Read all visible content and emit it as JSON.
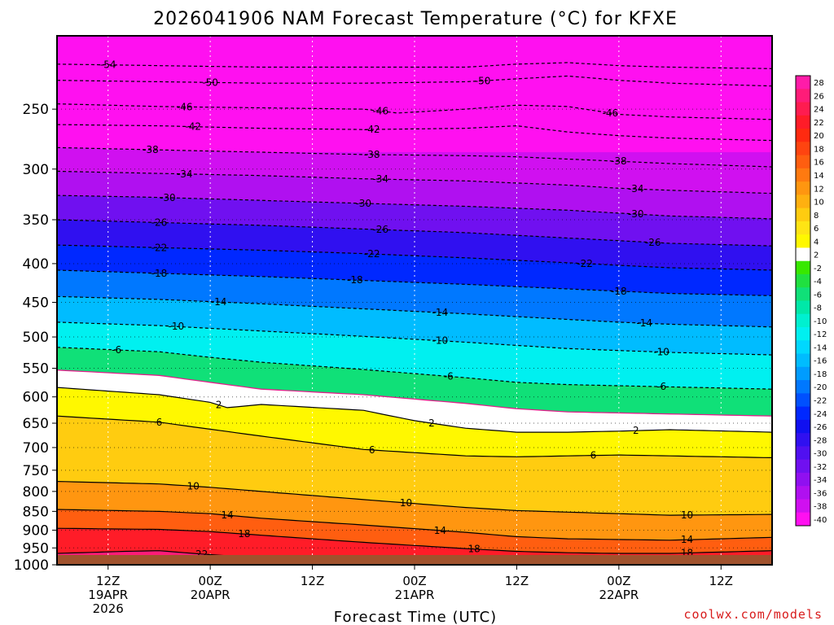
{
  "chart_data": {
    "type": "heatmap",
    "title": "2026041906 NAM Forecast Temperature (°C) for KFXE",
    "xlabel": "Forecast Time (UTC)",
    "ylabel": "",
    "credit": "coolwx.com/models",
    "y_axis": {
      "scale": "log",
      "ylim": [
        1000,
        200
      ],
      "reversed": true,
      "ticks": [
        250,
        300,
        350,
        400,
        450,
        500,
        550,
        600,
        650,
        700,
        750,
        800,
        850,
        900,
        950,
        1000
      ]
    },
    "x_axis": {
      "range_hours": [
        0,
        84
      ],
      "tick_hours": [
        6,
        18,
        30,
        42,
        54,
        66,
        78
      ],
      "tick_labels": [
        [
          "12Z",
          "19APR",
          "2026"
        ],
        [
          "00Z",
          "20APR"
        ],
        [
          "12Z"
        ],
        [
          "00Z",
          "21APR"
        ],
        [
          "12Z"
        ],
        [
          "00Z",
          "22APR"
        ],
        [
          "12Z"
        ]
      ]
    },
    "colorbar": {
      "labels": [
        28,
        26,
        24,
        22,
        20,
        18,
        16,
        14,
        12,
        10,
        8,
        6,
        4,
        2,
        -2,
        -4,
        -6,
        -8,
        -10,
        -12,
        -14,
        -16,
        -18,
        -20,
        -22,
        -24,
        -26,
        -28,
        -30,
        -32,
        -34,
        -36,
        -38,
        -40
      ],
      "colors": [
        "#ff1ca8",
        "#ff1c78",
        "#ff1c50",
        "#ff1c28",
        "#ff2a10",
        "#ff4410",
        "#ff5e10",
        "#ff7a10",
        "#ff9610",
        "#ffb010",
        "#ffcc10",
        "#ffe414",
        "#fff800",
        "#ffffff",
        "#38e800",
        "#20e040",
        "#10e078",
        "#00e8a8",
        "#00f0d0",
        "#00f0f0",
        "#00d8ff",
        "#00bcff",
        "#009cff",
        "#0078ff",
        "#0050ff",
        "#0028ff",
        "#1010f0",
        "#3010f0",
        "#5010f0",
        "#7010f0",
        "#9010f0",
        "#b010f0",
        "#d010f0",
        "#ff10f0"
      ]
    },
    "contour_values": [
      -54,
      -50,
      -46,
      -42,
      -38,
      -34,
      -30,
      -26,
      -22,
      -18,
      -14,
      -10,
      -6,
      -2,
      2,
      6,
      10,
      14,
      18,
      22
    ],
    "contours": [
      {
        "value": -54,
        "label_hour": 6,
        "pressures": [
          [
            0,
            218
          ],
          [
            12,
            219
          ],
          [
            24,
            220
          ],
          [
            36,
            220
          ],
          [
            48,
            220
          ],
          [
            54,
            218
          ],
          [
            60,
            217
          ],
          [
            66,
            219
          ],
          [
            72,
            220
          ],
          [
            84,
            221
          ]
        ]
      },
      {
        "value": -50,
        "label_hour": 18,
        "label2_hour": 50,
        "pressures": [
          [
            0,
            229
          ],
          [
            12,
            230
          ],
          [
            24,
            231
          ],
          [
            36,
            231
          ],
          [
            48,
            230
          ],
          [
            54,
            228
          ],
          [
            60,
            226
          ],
          [
            66,
            229
          ],
          [
            72,
            231
          ],
          [
            84,
            233
          ]
        ]
      },
      {
        "value": -46,
        "label_hour": 15,
        "label2_hour": 38,
        "label3_hour": 65,
        "pressures": [
          [
            0,
            246
          ],
          [
            12,
            248
          ],
          [
            24,
            249
          ],
          [
            36,
            250
          ],
          [
            40,
            253
          ],
          [
            48,
            250
          ],
          [
            54,
            247
          ],
          [
            60,
            248
          ],
          [
            66,
            254
          ],
          [
            72,
            256
          ],
          [
            84,
            258
          ]
        ]
      },
      {
        "value": -42,
        "label_hour": 16,
        "label2_hour": 37,
        "pressures": [
          [
            0,
            262
          ],
          [
            12,
            263
          ],
          [
            24,
            265
          ],
          [
            36,
            266
          ],
          [
            48,
            265
          ],
          [
            54,
            263
          ],
          [
            60,
            268
          ],
          [
            66,
            271
          ],
          [
            72,
            273
          ],
          [
            84,
            275
          ]
        ]
      },
      {
        "value": -38,
        "label_hour": 11,
        "label2_hour": 37,
        "label3_hour": 66,
        "pressures": [
          [
            0,
            281
          ],
          [
            12,
            283
          ],
          [
            24,
            285
          ],
          [
            36,
            287
          ],
          [
            48,
            288
          ],
          [
            54,
            289
          ],
          [
            60,
            291
          ],
          [
            66,
            293
          ],
          [
            72,
            295
          ],
          [
            84,
            298
          ]
        ]
      },
      {
        "value": -34,
        "label_hour": 15,
        "label2_hour": 38,
        "label3_hour": 68,
        "pressures": [
          [
            0,
            302
          ],
          [
            12,
            304
          ],
          [
            24,
            306
          ],
          [
            36,
            309
          ],
          [
            48,
            311
          ],
          [
            54,
            313
          ],
          [
            60,
            315
          ],
          [
            66,
            318
          ],
          [
            72,
            320
          ],
          [
            84,
            323
          ]
        ]
      },
      {
        "value": -30,
        "label_hour": 13,
        "label2_hour": 36,
        "label3_hour": 68,
        "pressures": [
          [
            0,
            325
          ],
          [
            12,
            327
          ],
          [
            24,
            330
          ],
          [
            36,
            333
          ],
          [
            48,
            336
          ],
          [
            54,
            338
          ],
          [
            60,
            340
          ],
          [
            66,
            343
          ],
          [
            72,
            346
          ],
          [
            84,
            349
          ]
        ]
      },
      {
        "value": -26,
        "label_hour": 12,
        "label2_hour": 38,
        "label3_hour": 70,
        "pressures": [
          [
            0,
            350
          ],
          [
            12,
            353
          ],
          [
            24,
            356
          ],
          [
            36,
            360
          ],
          [
            48,
            364
          ],
          [
            54,
            367
          ],
          [
            60,
            370
          ],
          [
            66,
            373
          ],
          [
            72,
            376
          ],
          [
            84,
            379
          ]
        ]
      },
      {
        "value": -22,
        "label_hour": 12,
        "label2_hour": 37,
        "label3_hour": 62,
        "pressures": [
          [
            0,
            378
          ],
          [
            12,
            381
          ],
          [
            24,
            384
          ],
          [
            36,
            388
          ],
          [
            48,
            393
          ],
          [
            54,
            396
          ],
          [
            60,
            399
          ],
          [
            66,
            402
          ],
          [
            72,
            405
          ],
          [
            84,
            408
          ]
        ]
      },
      {
        "value": -18,
        "label_hour": 12,
        "label2_hour": 35,
        "label3_hour": 66,
        "pressures": [
          [
            0,
            408
          ],
          [
            12,
            412
          ],
          [
            24,
            416
          ],
          [
            36,
            421
          ],
          [
            48,
            426
          ],
          [
            54,
            429
          ],
          [
            60,
            432
          ],
          [
            66,
            435
          ],
          [
            72,
            438
          ],
          [
            84,
            441
          ]
        ]
      },
      {
        "value": -14,
        "label_hour": 19,
        "label2_hour": 45,
        "label3_hour": 69,
        "pressures": [
          [
            0,
            442
          ],
          [
            12,
            446
          ],
          [
            24,
            452
          ],
          [
            36,
            459
          ],
          [
            48,
            466
          ],
          [
            54,
            470
          ],
          [
            60,
            474
          ],
          [
            66,
            478
          ],
          [
            72,
            481
          ],
          [
            84,
            485
          ]
        ]
      },
      {
        "value": -10,
        "label_hour": 14,
        "label2_hour": 45,
        "label3_hour": 71,
        "pressures": [
          [
            0,
            478
          ],
          [
            12,
            483
          ],
          [
            24,
            491
          ],
          [
            36,
            499
          ],
          [
            48,
            508
          ],
          [
            54,
            513
          ],
          [
            60,
            518
          ],
          [
            66,
            521
          ],
          [
            72,
            524
          ],
          [
            84,
            528
          ]
        ]
      },
      {
        "value": -6,
        "label_hour": 7,
        "label2_hour": 46,
        "label3_hour": 71,
        "pressures": [
          [
            0,
            516
          ],
          [
            12,
            523
          ],
          [
            18,
            532
          ],
          [
            24,
            540
          ],
          [
            36,
            552
          ],
          [
            48,
            566
          ],
          [
            54,
            574
          ],
          [
            60,
            578
          ],
          [
            66,
            580
          ],
          [
            72,
            582
          ],
          [
            84,
            586
          ]
        ]
      },
      {
        "value": -2,
        "label_hour": null,
        "pressures": [
          [
            0,
            553
          ],
          [
            12,
            562
          ],
          [
            18,
            574
          ],
          [
            24,
            586
          ],
          [
            36,
            596
          ],
          [
            48,
            612
          ],
          [
            54,
            622
          ],
          [
            60,
            628
          ],
          [
            66,
            630
          ],
          [
            72,
            632
          ],
          [
            84,
            636
          ]
        ]
      },
      {
        "value": 2,
        "label_hour": 19,
        "label2_hour": 44,
        "label3_hour": 68,
        "pressures": [
          [
            0,
            583
          ],
          [
            12,
            596
          ],
          [
            18,
            610
          ],
          [
            20,
            620
          ],
          [
            24,
            614
          ],
          [
            36,
            625
          ],
          [
            42,
            645
          ],
          [
            48,
            660
          ],
          [
            54,
            668
          ],
          [
            60,
            668
          ],
          [
            66,
            666
          ],
          [
            72,
            663
          ],
          [
            84,
            668
          ]
        ]
      },
      {
        "value": 6,
        "label_hour": 12,
        "label2_hour": 37,
        "label3_hour": 63,
        "pressures": [
          [
            0,
            636
          ],
          [
            12,
            648
          ],
          [
            18,
            662
          ],
          [
            24,
            676
          ],
          [
            36,
            704
          ],
          [
            48,
            718
          ],
          [
            54,
            720
          ],
          [
            60,
            718
          ],
          [
            66,
            716
          ],
          [
            72,
            718
          ],
          [
            84,
            722
          ]
        ]
      },
      {
        "value": 10,
        "label_hour": 16,
        "label2_hour": 41,
        "label3_hour": 74,
        "pressures": [
          [
            0,
            776
          ],
          [
            12,
            782
          ],
          [
            18,
            790
          ],
          [
            24,
            800
          ],
          [
            36,
            820
          ],
          [
            48,
            840
          ],
          [
            54,
            848
          ],
          [
            60,
            852
          ],
          [
            66,
            856
          ],
          [
            72,
            860
          ],
          [
            84,
            858
          ]
        ]
      },
      {
        "value": 14,
        "label_hour": 20,
        "label2_hour": 45,
        "label3_hour": 74,
        "pressures": [
          [
            0,
            845
          ],
          [
            12,
            850
          ],
          [
            18,
            856
          ],
          [
            24,
            868
          ],
          [
            36,
            886
          ],
          [
            48,
            906
          ],
          [
            54,
            918
          ],
          [
            60,
            924
          ],
          [
            66,
            926
          ],
          [
            72,
            928
          ],
          [
            84,
            920
          ]
        ]
      },
      {
        "value": 18,
        "label_hour": 22,
        "label2_hour": 49,
        "label3_hour": 74,
        "pressures": [
          [
            0,
            895
          ],
          [
            12,
            898
          ],
          [
            18,
            904
          ],
          [
            24,
            914
          ],
          [
            36,
            934
          ],
          [
            48,
            952
          ],
          [
            54,
            960
          ],
          [
            60,
            964
          ],
          [
            66,
            966
          ],
          [
            72,
            966
          ],
          [
            84,
            958
          ]
        ]
      },
      {
        "value": 22,
        "label_hour": 17,
        "label2_hour": 31,
        "pressures": [
          [
            0,
            966
          ],
          [
            8,
            960
          ],
          [
            12,
            958
          ],
          [
            16,
            966
          ],
          [
            24,
            980
          ],
          [
            36,
            992
          ],
          [
            48,
            998
          ],
          [
            54,
            1000
          ],
          [
            60,
            1000
          ],
          [
            66,
            1000
          ],
          [
            72,
            1000
          ],
          [
            84,
            1000
          ]
        ]
      }
    ],
    "bands": [
      {
        "p_top": 200,
        "p_bot": 330,
        "color": "#ff10f0"
      },
      {
        "p_top": 285,
        "p_bot": 305,
        "color": "#d010f0"
      },
      {
        "p_top": 305,
        "p_bot": 330,
        "color": "#b010f0"
      },
      {
        "p_top": 330,
        "p_bot": 350,
        "color": "#7010f0"
      },
      {
        "p_top": 350,
        "p_bot": 380,
        "color": "#3010f0"
      },
      {
        "p_top": 380,
        "p_bot": 410,
        "color": "#0028ff"
      },
      {
        "p_top": 410,
        "p_bot": 440,
        "color": "#0078ff"
      },
      {
        "p_top": 440,
        "p_bot": 470,
        "color": "#00bcff"
      },
      {
        "p_top": 470,
        "p_bot": 505,
        "color": "#00f0f0"
      },
      {
        "p_top": 505,
        "p_bot": 530,
        "color": "#00e8a8"
      },
      {
        "p_top": 530,
        "p_bot": 560,
        "color": "#10e078"
      },
      {
        "p_top": 560,
        "p_bot": 590,
        "color": "#38e800"
      },
      {
        "p_top": 590,
        "p_bot": 625,
        "color": "#ffffff"
      },
      {
        "p_top": 625,
        "p_bot": 680,
        "color": "#fff800"
      },
      {
        "p_top": 680,
        "p_bot": 740,
        "color": "#ffcc10"
      },
      {
        "p_top": 740,
        "p_bot": 790,
        "color": "#ffb010"
      },
      {
        "p_top": 790,
        "p_bot": 840,
        "color": "#ff9610"
      },
      {
        "p_top": 840,
        "p_bot": 880,
        "color": "#ff7a10"
      },
      {
        "p_top": 880,
        "p_bot": 920,
        "color": "#ff4410"
      },
      {
        "p_top": 920,
        "p_bot": 960,
        "color": "#ff1c28"
      },
      {
        "p_top": 960,
        "p_bot": 1000,
        "color": "#ff1c78"
      }
    ],
    "ground_color": "#a0522d"
  }
}
